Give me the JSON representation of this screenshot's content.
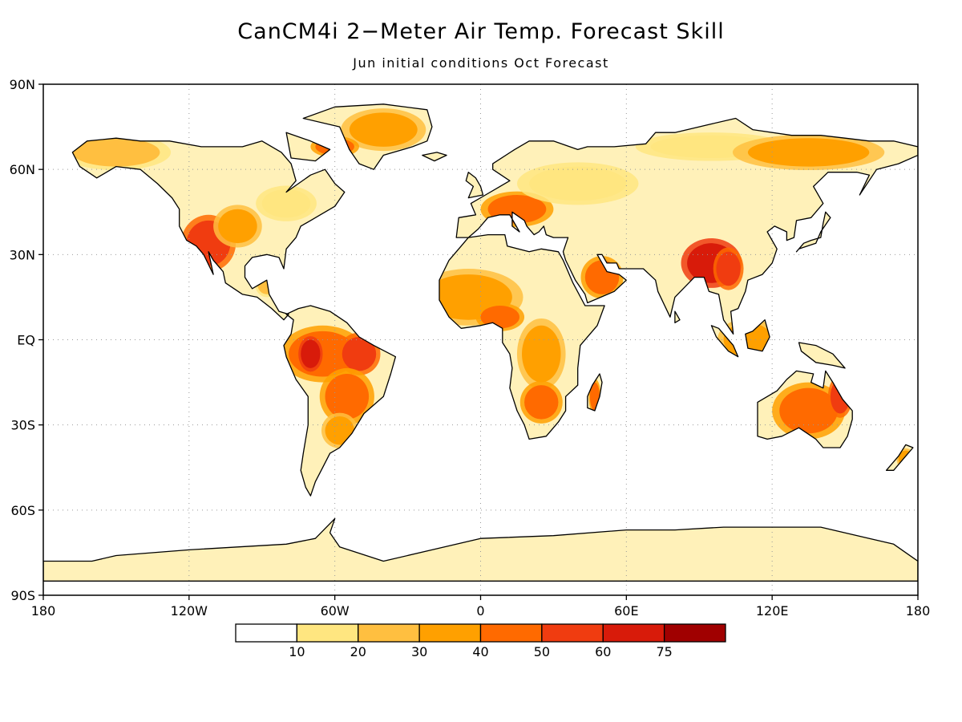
{
  "title": "CanCM4i 2−Meter Air Temp. Forecast Skill",
  "subtitle": "Jun initial conditions   Oct Forecast",
  "map": {
    "projection": "equirectangular",
    "lon_range": [
      -180,
      180
    ],
    "lat_range": [
      -90,
      90
    ],
    "grid": "dotted gray lines every 30 degrees"
  },
  "lat_labels": [
    {
      "lat": 90,
      "label": "90N"
    },
    {
      "lat": 60,
      "label": "60N"
    },
    {
      "lat": 30,
      "label": "30N"
    },
    {
      "lat": 0,
      "label": "EQ"
    },
    {
      "lat": -30,
      "label": "30S"
    },
    {
      "lat": -60,
      "label": "60S"
    },
    {
      "lat": -90,
      "label": "90S"
    }
  ],
  "lon_labels": [
    {
      "lon": -180,
      "label": "180"
    },
    {
      "lon": -120,
      "label": "120W"
    },
    {
      "lon": -60,
      "label": "60W"
    },
    {
      "lon": 0,
      "label": "0"
    },
    {
      "lon": 60,
      "label": "60E"
    },
    {
      "lon": 120,
      "label": "120E"
    },
    {
      "lon": 180,
      "label": "180"
    }
  ],
  "colorbar": {
    "colors": [
      "#ffffff",
      "#ffe680",
      "#ffbf40",
      "#ffa000",
      "#ff6a00",
      "#f03c10",
      "#d81b0a",
      "#a00000"
    ],
    "labels": [
      "10",
      "20",
      "30",
      "40",
      "50",
      "60",
      "75"
    ]
  },
  "skill_regions": [
    {
      "lon": -112,
      "lat": 34,
      "rx": 9,
      "ry": 8,
      "level": 5
    },
    {
      "lon": -100,
      "lat": 40,
      "rx": 8,
      "ry": 6,
      "level": 3
    },
    {
      "lon": -150,
      "lat": 66,
      "rx": 18,
      "ry": 5,
      "level": 2
    },
    {
      "lon": -80,
      "lat": 48,
      "rx": 10,
      "ry": 5,
      "level": 1
    },
    {
      "lon": -88,
      "lat": 20,
      "rx": 4,
      "ry": 4,
      "level": 2
    },
    {
      "lon": -40,
      "lat": 74,
      "rx": 14,
      "ry": 6,
      "level": 3
    },
    {
      "lon": -60,
      "lat": 68,
      "rx": 8,
      "ry": 3,
      "level": 4
    },
    {
      "lon": -65,
      "lat": -5,
      "rx": 14,
      "ry": 8,
      "level": 4
    },
    {
      "lon": -50,
      "lat": -5,
      "rx": 7,
      "ry": 6,
      "level": 5
    },
    {
      "lon": -70,
      "lat": -5,
      "rx": 4,
      "ry": 5,
      "level": 6
    },
    {
      "lon": -55,
      "lat": -20,
      "rx": 9,
      "ry": 8,
      "level": 4
    },
    {
      "lon": -58,
      "lat": -32,
      "rx": 6,
      "ry": 5,
      "level": 3
    },
    {
      "lon": -5,
      "lat": 15,
      "rx": 18,
      "ry": 8,
      "level": 3
    },
    {
      "lon": 8,
      "lat": 8,
      "rx": 8,
      "ry": 4,
      "level": 4
    },
    {
      "lon": 25,
      "lat": -5,
      "rx": 8,
      "ry": 10,
      "level": 3
    },
    {
      "lon": 25,
      "lat": -22,
      "rx": 7,
      "ry": 6,
      "level": 4
    },
    {
      "lon": 47,
      "lat": -20,
      "rx": 2,
      "ry": 5,
      "level": 4
    },
    {
      "lon": 15,
      "lat": 46,
      "rx": 12,
      "ry": 5,
      "level": 4
    },
    {
      "lon": 40,
      "lat": 55,
      "rx": 20,
      "ry": 6,
      "level": 1
    },
    {
      "lon": 50,
      "lat": 22,
      "rx": 7,
      "ry": 6,
      "level": 4
    },
    {
      "lon": 95,
      "lat": 27,
      "rx": 10,
      "ry": 7,
      "level": 6
    },
    {
      "lon": 102,
      "lat": 25,
      "rx": 5,
      "ry": 6,
      "level": 5
    },
    {
      "lon": 95,
      "lat": 68,
      "rx": 25,
      "ry": 4,
      "level": 1
    },
    {
      "lon": 135,
      "lat": 66,
      "rx": 25,
      "ry": 5,
      "level": 3
    },
    {
      "lon": 110,
      "lat": 0,
      "rx": 10,
      "ry": 6,
      "level": 3
    },
    {
      "lon": 135,
      "lat": -25,
      "rx": 12,
      "ry": 8,
      "level": 4
    },
    {
      "lon": 148,
      "lat": -20,
      "rx": 4,
      "ry": 6,
      "level": 5
    },
    {
      "lon": 175,
      "lat": -42,
      "rx": 3,
      "ry": 3,
      "level": 3
    }
  ]
}
